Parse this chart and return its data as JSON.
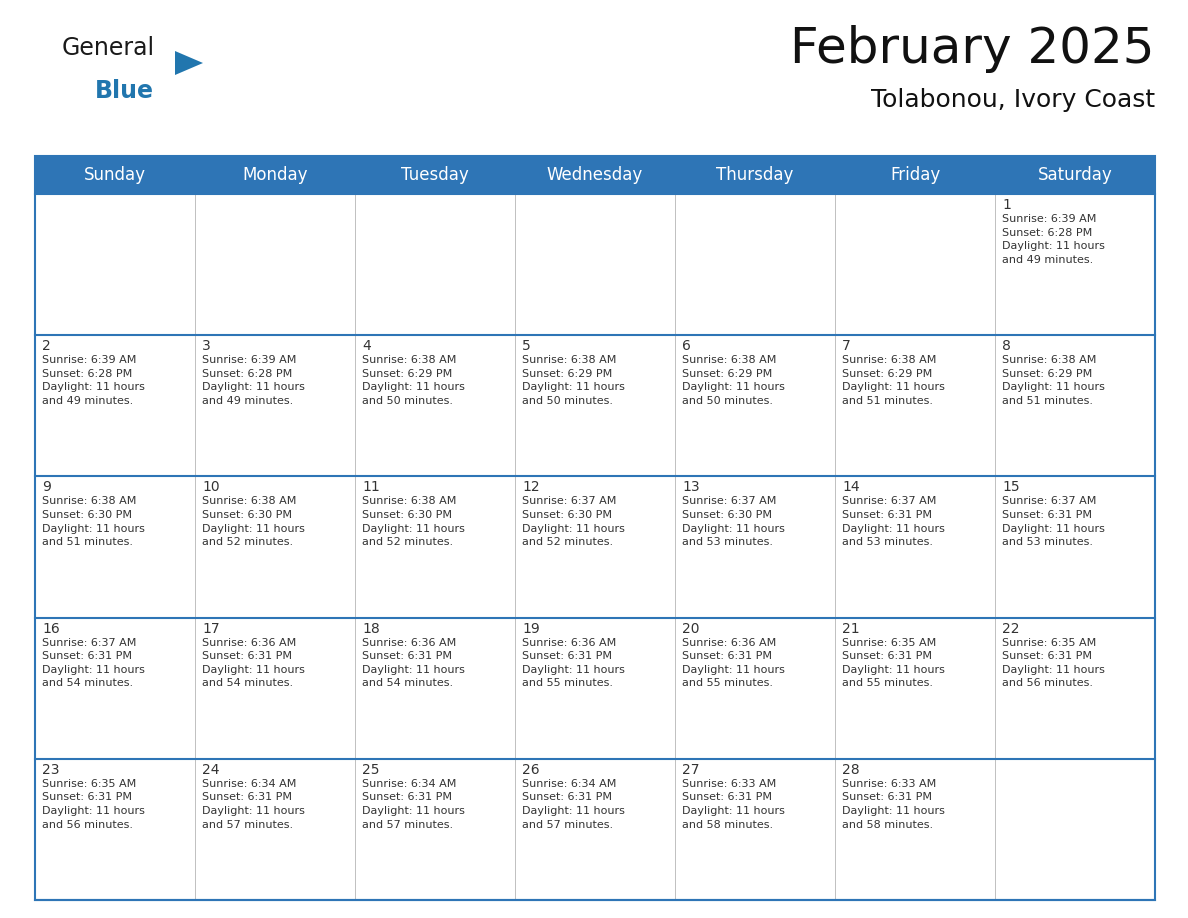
{
  "title": "February 2025",
  "subtitle": "Tolabonou, Ivory Coast",
  "header_bg": "#2E75B6",
  "header_text_color": "#FFFFFF",
  "cell_bg": "#FFFFFF",
  "row_separator_color": "#2E75B6",
  "col_separator_color": "#C0C0C0",
  "day_headers": [
    "Sunday",
    "Monday",
    "Tuesday",
    "Wednesday",
    "Thursday",
    "Friday",
    "Saturday"
  ],
  "title_fontsize": 36,
  "subtitle_fontsize": 18,
  "header_fontsize": 12,
  "day_num_fontsize": 10,
  "cell_text_fontsize": 8,
  "logo_text_general": "General",
  "logo_text_blue": "Blue",
  "logo_color_general": "#1a1a1a",
  "logo_color_blue": "#2176AE",
  "logo_triangle_color": "#2176AE",
  "calendar": [
    [
      null,
      null,
      null,
      null,
      null,
      null,
      {
        "day": 1,
        "sunrise": "6:39 AM",
        "sunset": "6:28 PM",
        "daylight": "11 hours\nand 49 minutes."
      }
    ],
    [
      {
        "day": 2,
        "sunrise": "6:39 AM",
        "sunset": "6:28 PM",
        "daylight": "11 hours\nand 49 minutes."
      },
      {
        "day": 3,
        "sunrise": "6:39 AM",
        "sunset": "6:28 PM",
        "daylight": "11 hours\nand 49 minutes."
      },
      {
        "day": 4,
        "sunrise": "6:38 AM",
        "sunset": "6:29 PM",
        "daylight": "11 hours\nand 50 minutes."
      },
      {
        "day": 5,
        "sunrise": "6:38 AM",
        "sunset": "6:29 PM",
        "daylight": "11 hours\nand 50 minutes."
      },
      {
        "day": 6,
        "sunrise": "6:38 AM",
        "sunset": "6:29 PM",
        "daylight": "11 hours\nand 50 minutes."
      },
      {
        "day": 7,
        "sunrise": "6:38 AM",
        "sunset": "6:29 PM",
        "daylight": "11 hours\nand 51 minutes."
      },
      {
        "day": 8,
        "sunrise": "6:38 AM",
        "sunset": "6:29 PM",
        "daylight": "11 hours\nand 51 minutes."
      }
    ],
    [
      {
        "day": 9,
        "sunrise": "6:38 AM",
        "sunset": "6:30 PM",
        "daylight": "11 hours\nand 51 minutes."
      },
      {
        "day": 10,
        "sunrise": "6:38 AM",
        "sunset": "6:30 PM",
        "daylight": "11 hours\nand 52 minutes."
      },
      {
        "day": 11,
        "sunrise": "6:38 AM",
        "sunset": "6:30 PM",
        "daylight": "11 hours\nand 52 minutes."
      },
      {
        "day": 12,
        "sunrise": "6:37 AM",
        "sunset": "6:30 PM",
        "daylight": "11 hours\nand 52 minutes."
      },
      {
        "day": 13,
        "sunrise": "6:37 AM",
        "sunset": "6:30 PM",
        "daylight": "11 hours\nand 53 minutes."
      },
      {
        "day": 14,
        "sunrise": "6:37 AM",
        "sunset": "6:31 PM",
        "daylight": "11 hours\nand 53 minutes."
      },
      {
        "day": 15,
        "sunrise": "6:37 AM",
        "sunset": "6:31 PM",
        "daylight": "11 hours\nand 53 minutes."
      }
    ],
    [
      {
        "day": 16,
        "sunrise": "6:37 AM",
        "sunset": "6:31 PM",
        "daylight": "11 hours\nand 54 minutes."
      },
      {
        "day": 17,
        "sunrise": "6:36 AM",
        "sunset": "6:31 PM",
        "daylight": "11 hours\nand 54 minutes."
      },
      {
        "day": 18,
        "sunrise": "6:36 AM",
        "sunset": "6:31 PM",
        "daylight": "11 hours\nand 54 minutes."
      },
      {
        "day": 19,
        "sunrise": "6:36 AM",
        "sunset": "6:31 PM",
        "daylight": "11 hours\nand 55 minutes."
      },
      {
        "day": 20,
        "sunrise": "6:36 AM",
        "sunset": "6:31 PM",
        "daylight": "11 hours\nand 55 minutes."
      },
      {
        "day": 21,
        "sunrise": "6:35 AM",
        "sunset": "6:31 PM",
        "daylight": "11 hours\nand 55 minutes."
      },
      {
        "day": 22,
        "sunrise": "6:35 AM",
        "sunset": "6:31 PM",
        "daylight": "11 hours\nand 56 minutes."
      }
    ],
    [
      {
        "day": 23,
        "sunrise": "6:35 AM",
        "sunset": "6:31 PM",
        "daylight": "11 hours\nand 56 minutes."
      },
      {
        "day": 24,
        "sunrise": "6:34 AM",
        "sunset": "6:31 PM",
        "daylight": "11 hours\nand 57 minutes."
      },
      {
        "day": 25,
        "sunrise": "6:34 AM",
        "sunset": "6:31 PM",
        "daylight": "11 hours\nand 57 minutes."
      },
      {
        "day": 26,
        "sunrise": "6:34 AM",
        "sunset": "6:31 PM",
        "daylight": "11 hours\nand 57 minutes."
      },
      {
        "day": 27,
        "sunrise": "6:33 AM",
        "sunset": "6:31 PM",
        "daylight": "11 hours\nand 58 minutes."
      },
      {
        "day": 28,
        "sunrise": "6:33 AM",
        "sunset": "6:31 PM",
        "daylight": "11 hours\nand 58 minutes."
      },
      null
    ]
  ]
}
